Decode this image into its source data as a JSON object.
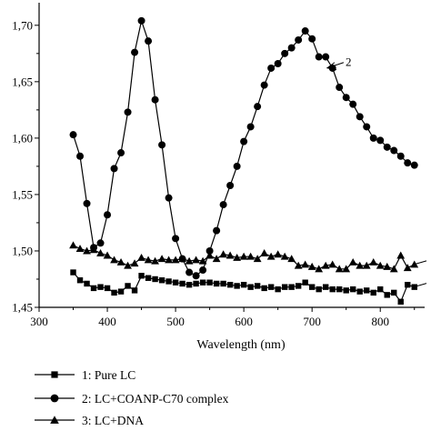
{
  "chart_data": {
    "type": "line",
    "xlabel": "Wavelength (nm)",
    "ylabel": "",
    "xlim": [
      300,
      865
    ],
    "ylim": [
      1.45,
      1.72
    ],
    "xticks": [
      300,
      400,
      500,
      600,
      700,
      800
    ],
    "yticks": [
      1.45,
      1.5,
      1.55,
      1.6,
      1.65,
      1.7
    ],
    "ytick_labels": [
      "1,45",
      "1,50",
      "1,55",
      "1,60",
      "1,65",
      "1,70"
    ],
    "grid": false,
    "legend_position": "bottom",
    "annotation": {
      "text": "2",
      "x": 725,
      "y": 1.663
    },
    "series": [
      {
        "name": "1: Pure LC",
        "marker": "square",
        "x": [
          350,
          360,
          370,
          380,
          390,
          400,
          410,
          420,
          430,
          440,
          450,
          460,
          470,
          480,
          490,
          500,
          510,
          520,
          530,
          540,
          550,
          560,
          570,
          580,
          590,
          600,
          610,
          620,
          630,
          640,
          650,
          660,
          670,
          680,
          690,
          700,
          710,
          720,
          730,
          740,
          750,
          760,
          770,
          780,
          790,
          800,
          810,
          820,
          830,
          840,
          850
        ],
        "y": [
          1.481,
          1.474,
          1.471,
          1.467,
          1.468,
          1.467,
          1.463,
          1.464,
          1.469,
          1.465,
          1.478,
          1.476,
          1.475,
          1.474,
          1.473,
          1.472,
          1.471,
          1.47,
          1.471,
          1.472,
          1.472,
          1.471,
          1.471,
          1.47,
          1.469,
          1.47,
          1.468,
          1.469,
          1.467,
          1.468,
          1.466,
          1.468,
          1.468,
          1.469,
          1.472,
          1.468,
          1.466,
          1.468,
          1.466,
          1.466,
          1.465,
          1.466,
          1.464,
          1.465,
          1.463,
          1.466,
          1.461,
          1.463,
          1.455,
          1.47,
          1.468
        ]
      },
      {
        "name": "2: LC+COANP-C70 complex",
        "marker": "circle",
        "x": [
          350,
          360,
          370,
          380,
          390,
          400,
          410,
          420,
          430,
          440,
          450,
          460,
          470,
          480,
          490,
          500,
          510,
          520,
          530,
          540,
          550,
          560,
          570,
          580,
          590,
          600,
          610,
          620,
          630,
          640,
          650,
          660,
          670,
          680,
          690,
          700,
          710,
          720,
          730,
          740,
          750,
          760,
          770,
          780,
          790,
          800,
          810,
          820,
          830,
          840,
          850
        ],
        "y": [
          1.603,
          1.584,
          1.542,
          1.503,
          1.507,
          1.532,
          1.573,
          1.587,
          1.623,
          1.676,
          1.704,
          1.686,
          1.634,
          1.594,
          1.547,
          1.511,
          1.493,
          1.481,
          1.478,
          1.483,
          1.5,
          1.518,
          1.541,
          1.558,
          1.575,
          1.597,
          1.61,
          1.628,
          1.647,
          1.662,
          1.666,
          1.675,
          1.68,
          1.687,
          1.695,
          1.688,
          1.672,
          1.672,
          1.662,
          1.645,
          1.636,
          1.63,
          1.619,
          1.61,
          1.6,
          1.598,
          1.592,
          1.589,
          1.584,
          1.578,
          1.576
        ]
      },
      {
        "name": "3: LC+DNA",
        "marker": "triangle",
        "x": [
          350,
          360,
          370,
          380,
          390,
          400,
          410,
          420,
          430,
          440,
          450,
          460,
          470,
          480,
          490,
          500,
          510,
          520,
          530,
          540,
          550,
          560,
          570,
          580,
          590,
          600,
          610,
          620,
          630,
          640,
          650,
          660,
          670,
          680,
          690,
          700,
          710,
          720,
          730,
          740,
          750,
          760,
          770,
          780,
          790,
          800,
          810,
          820,
          830,
          840,
          850
        ],
        "y": [
          1.505,
          1.502,
          1.5,
          1.501,
          1.498,
          1.496,
          1.492,
          1.49,
          1.487,
          1.489,
          1.494,
          1.492,
          1.491,
          1.493,
          1.492,
          1.492,
          1.493,
          1.491,
          1.492,
          1.491,
          1.496,
          1.493,
          1.497,
          1.496,
          1.494,
          1.495,
          1.495,
          1.493,
          1.498,
          1.495,
          1.497,
          1.495,
          1.493,
          1.487,
          1.488,
          1.486,
          1.484,
          1.487,
          1.488,
          1.484,
          1.484,
          1.49,
          1.487,
          1.487,
          1.49,
          1.487,
          1.486,
          1.484,
          1.496,
          1.485,
          1.488
        ]
      }
    ]
  }
}
